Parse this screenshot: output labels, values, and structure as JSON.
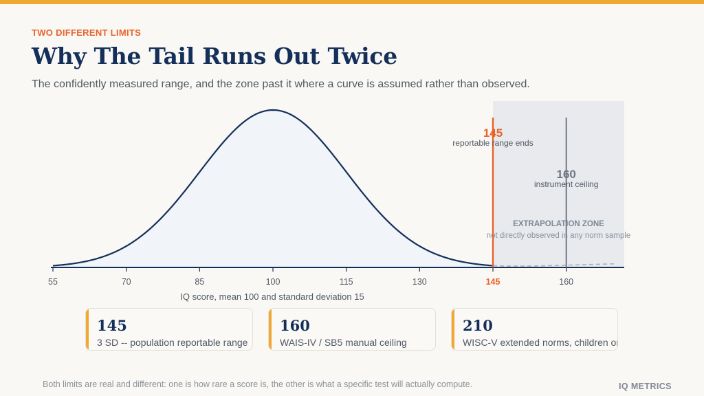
{
  "header": {
    "eyebrow": "TWO DIFFERENT LIMITS",
    "title": "Why The Tail Runs Out Twice",
    "subtitle": "The confidently measured range, and the zone past it where a curve is assumed rather than observed."
  },
  "chart_data": {
    "type": "area",
    "distribution": "normal",
    "mean": 100,
    "sd": 15,
    "xlabel": "IQ score, mean 100 and standard deviation 15",
    "ylabel": "",
    "xlim": [
      55,
      170
    ],
    "x_ticks": [
      55,
      70,
      85,
      100,
      115,
      130,
      145,
      160
    ],
    "grid": false,
    "markers": [
      {
        "x": 145,
        "value_label": "145",
        "label": "reportable range ends",
        "color": "#e8632a"
      },
      {
        "x": 160,
        "value_label": "160",
        "label": "instrument ceiling",
        "color": "#6f7884"
      }
    ],
    "zone": {
      "from": 145,
      "to": 170,
      "title": "EXTRAPOLATION ZONE",
      "subtitle": "not directly observed in any norm sample"
    },
    "colors": {
      "curve": "#14305a",
      "fill": "#f1f4f9",
      "accent": "#e8632a",
      "ceiling": "#6f7884",
      "zone": "#e9eaee",
      "tick_label": "#4f5864"
    }
  },
  "cards": [
    {
      "value": "145",
      "label": "3 SD -- population reportable range"
    },
    {
      "value": "160",
      "label": "WAIS-IV / SB5 manual ceiling"
    },
    {
      "value": "210",
      "label": "WISC-V extended norms, children only"
    }
  ],
  "footer": {
    "note": "Both limits are real and different: one is how rare a score is, the other is what a specific test will actually compute.",
    "brand": "IQ METRICS"
  }
}
